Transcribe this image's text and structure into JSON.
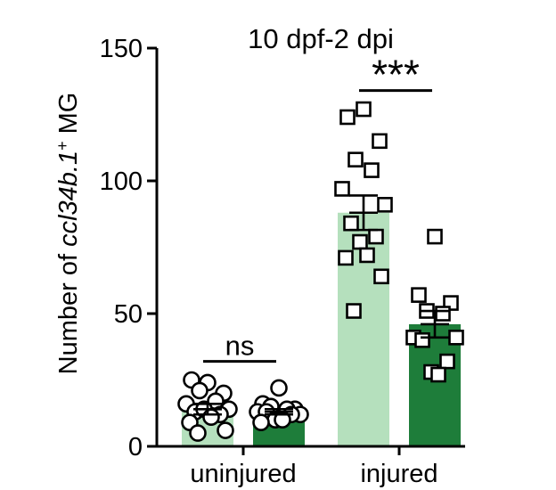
{
  "chart_data": {
    "type": "bar",
    "title": "10 dpf-2 dpi",
    "ylabel": {
      "prefix": "Number of ",
      "gene": "ccl34b.1",
      "sup": "+",
      "suffix": " MG"
    },
    "ylim": [
      0,
      150
    ],
    "yticks": [
      "0",
      "50",
      "100",
      "150"
    ],
    "groups": [
      {
        "label": "uninjured"
      },
      {
        "label": "injured"
      }
    ],
    "colors": {
      "light": "#b5e0bd",
      "dark": "#1e7d3a"
    },
    "bars": [
      {
        "group": 0,
        "shade": "light",
        "marker": "circle",
        "mean": 14,
        "sem": 2,
        "points": [
          24,
          25,
          20,
          21,
          17,
          16,
          14,
          13,
          12,
          14,
          11,
          9,
          6,
          5
        ]
      },
      {
        "group": 0,
        "shade": "dark",
        "marker": "circle",
        "mean": 13,
        "sem": 1,
        "points": [
          22,
          16,
          14,
          15,
          14,
          13,
          12,
          13,
          12,
          10,
          10,
          9
        ]
      },
      {
        "group": 1,
        "shade": "light",
        "marker": "square",
        "mean": 88,
        "sem": 6.5,
        "points": [
          127,
          124,
          115,
          108,
          104,
          97,
          91,
          84,
          79,
          77,
          72,
          71,
          64,
          51
        ]
      },
      {
        "group": 1,
        "shade": "dark",
        "marker": "square",
        "mean": 46,
        "sem": 5,
        "points": [
          79,
          57,
          54,
          51,
          50,
          41,
          41,
          40,
          32,
          28,
          27
        ]
      }
    ],
    "annotations": [
      {
        "text": "ns",
        "between": [
          0,
          1
        ],
        "level": 32
      },
      {
        "text": "***",
        "between": [
          2,
          3
        ],
        "level": 134
      }
    ]
  }
}
